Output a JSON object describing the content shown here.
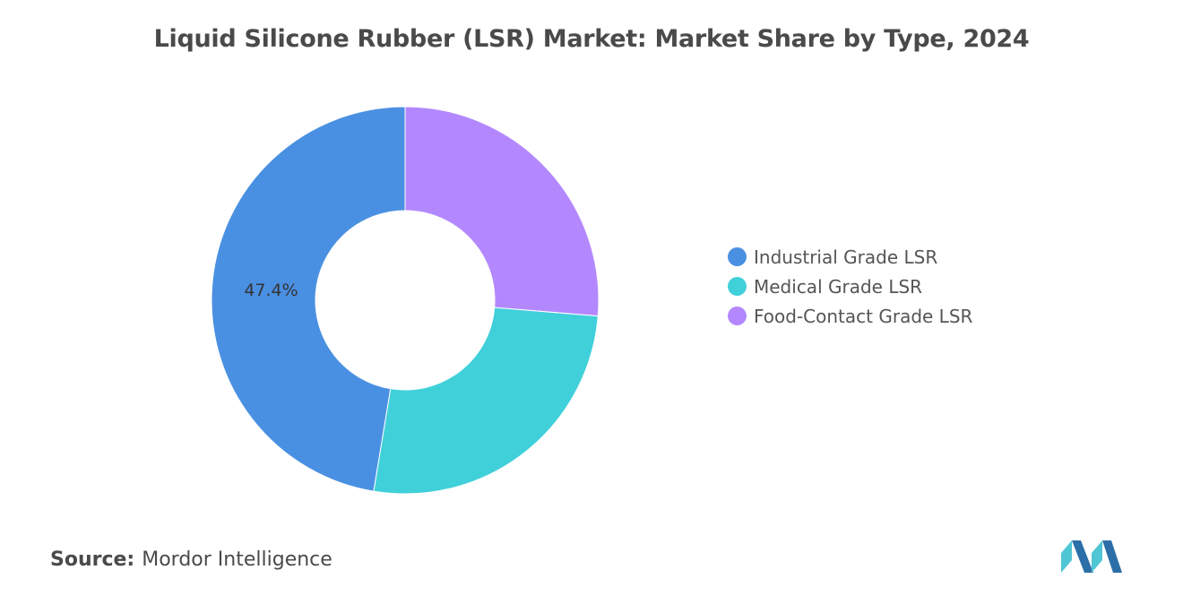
{
  "chart_data": {
    "type": "pie",
    "variant": "donut",
    "title": "Liquid Silicone Rubber (LSR) Market: Market Share by Type, 2024",
    "slices": [
      {
        "name": "Industrial Grade LSR",
        "value": 47.4,
        "color": "#4a90e2",
        "label": "47.4%"
      },
      {
        "name": "Medical Grade LSR",
        "value": 26.3,
        "color": "#40d0da",
        "label": ""
      },
      {
        "name": "Food-Contact Grade LSR",
        "value": 26.3,
        "color": "#b388ff",
        "label": ""
      }
    ],
    "legend_position": "right"
  },
  "source": {
    "label": "Source:",
    "text": "Mordor Intelligence"
  },
  "logo": {
    "icon": "mordor-intelligence-logo",
    "color_dark": "#2c6fa8",
    "color_light": "#4fc6d6"
  }
}
